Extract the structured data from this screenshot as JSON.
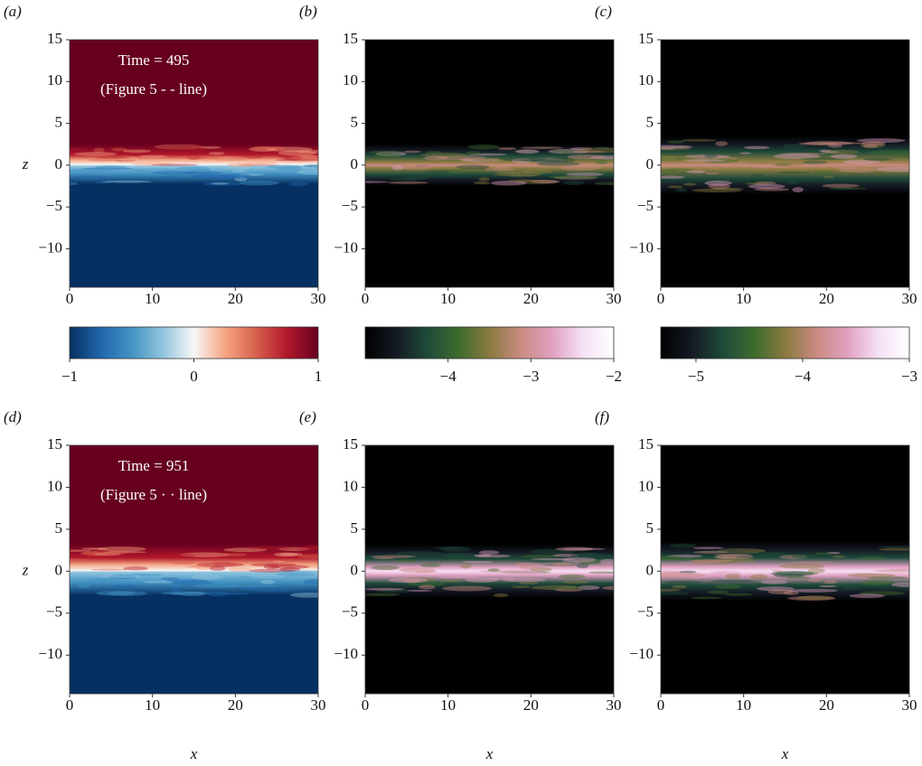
{
  "chart_data": [
    {
      "type": "heatmap",
      "label": "(a)",
      "ylabel": "z",
      "annotation": [
        "Time = 495",
        "(Figure 5 - - line)"
      ],
      "xlim": [
        0,
        30
      ],
      "xticks": [
        0,
        10,
        20,
        30
      ],
      "ylim": [
        -14.6,
        15
      ],
      "yticks": [
        15,
        10,
        5,
        0,
        {
          "value": -5,
          "label": "−5"
        },
        {
          "value": -10,
          "label": "−10"
        }
      ],
      "colors": [
        "#053061",
        "#2166ac",
        "#4393c3",
        "#92c5de",
        "#f7f7f7",
        "#f4a582",
        "#d6604d",
        "#b2182b",
        "#67001f"
      ]
    },
    {
      "type": "heatmap",
      "label": "(b)",
      "xlim": [
        0,
        30
      ],
      "xticks": [
        0,
        10,
        20,
        30
      ],
      "ylim": [
        -14.6,
        15
      ],
      "yticks": [
        15,
        10,
        5,
        0,
        {
          "value": -5,
          "label": "−5"
        },
        {
          "value": -10,
          "label": "−10"
        }
      ],
      "colors": [
        "#000000",
        "#141a24",
        "#1e4a3a",
        "#3d6b2e",
        "#8a7a3f",
        "#c98a80",
        "#e0a0c0",
        "#f5e0f5",
        "#ffffff"
      ]
    },
    {
      "type": "heatmap",
      "label": "(c)",
      "xlim": [
        0,
        30
      ],
      "xticks": [
        0,
        10,
        20,
        30
      ],
      "ylim": [
        -14.6,
        15
      ],
      "yticks": [
        15,
        10,
        5,
        0,
        {
          "value": -5,
          "label": "−5"
        },
        {
          "value": -10,
          "label": "−10"
        }
      ],
      "colors": [
        "#000000",
        "#141a24",
        "#1e4a3a",
        "#3d6b2e",
        "#8a7a3f",
        "#c98a80",
        "#e0a0c0",
        "#f5e0f5",
        "#ffffff"
      ]
    },
    {
      "type": "colorbar",
      "clim": [
        -1,
        1
      ],
      "ticks": [
        {
          "value": -1,
          "label": "−1"
        },
        0,
        1
      ],
      "colors": [
        "#053061",
        "#2166ac",
        "#4393c3",
        "#92c5de",
        "#f7f7f7",
        "#f4a582",
        "#d6604d",
        "#b2182b",
        "#67001f"
      ]
    },
    {
      "type": "colorbar",
      "clim": [
        -5,
        -2
      ],
      "ticks": [
        {
          "value": -4,
          "label": "−4"
        },
        {
          "value": -3,
          "label": "−3"
        },
        {
          "value": -2,
          "label": "−2"
        }
      ],
      "colors": [
        "#000000",
        "#141a24",
        "#1e4a3a",
        "#3d6b2e",
        "#8a7a3f",
        "#c98a80",
        "#e0a0c0",
        "#f5e0f5",
        "#ffffff"
      ]
    },
    {
      "type": "colorbar",
      "clim": [
        -5.33,
        -3
      ],
      "ticks": [
        {
          "value": -5,
          "label": "−5"
        },
        {
          "value": -4,
          "label": "−4"
        },
        {
          "value": -3,
          "label": "−3"
        }
      ],
      "colors": [
        "#000000",
        "#141a24",
        "#1e4a3a",
        "#3d6b2e",
        "#8a7a3f",
        "#c98a80",
        "#e0a0c0",
        "#f5e0f5",
        "#ffffff"
      ]
    },
    {
      "type": "heatmap",
      "label": "(d)",
      "ylabel": "z",
      "xlabel": "x",
      "annotation": [
        "Time = 951",
        "(Figure 5 · · line)"
      ],
      "xlim": [
        0,
        30
      ],
      "xticks": [
        0,
        10,
        20,
        30
      ],
      "ylim": [
        -14.6,
        15
      ],
      "yticks": [
        15,
        10,
        5,
        0,
        {
          "value": -5,
          "label": "−5"
        },
        {
          "value": -10,
          "label": "−10"
        }
      ],
      "colors": [
        "#053061",
        "#2166ac",
        "#4393c3",
        "#92c5de",
        "#f7f7f7",
        "#f4a582",
        "#d6604d",
        "#b2182b",
        "#67001f"
      ]
    },
    {
      "type": "heatmap",
      "label": "(e)",
      "xlabel": "x",
      "xlim": [
        0,
        30
      ],
      "xticks": [
        0,
        10,
        20,
        30
      ],
      "ylim": [
        -14.6,
        15
      ],
      "yticks": [
        15,
        10,
        5,
        0,
        {
          "value": -5,
          "label": "−5"
        },
        {
          "value": -10,
          "label": "−10"
        }
      ],
      "colors": [
        "#000000",
        "#141a24",
        "#1e4a3a",
        "#3d6b2e",
        "#8a7a3f",
        "#c98a80",
        "#e0a0c0",
        "#f5e0f5",
        "#ffffff"
      ]
    },
    {
      "type": "heatmap",
      "label": "(f)",
      "xlabel": "x",
      "xlim": [
        0,
        30
      ],
      "xticks": [
        0,
        10,
        20,
        30
      ],
      "ylim": [
        -14.6,
        15
      ],
      "yticks": [
        15,
        10,
        5,
        0,
        {
          "value": -5,
          "label": "−5"
        },
        {
          "value": -10,
          "label": "−10"
        }
      ],
      "colors": [
        "#000000",
        "#141a24",
        "#1e4a3a",
        "#3d6b2e",
        "#8a7a3f",
        "#c98a80",
        "#e0a0c0",
        "#f5e0f5",
        "#ffffff"
      ]
    }
  ]
}
